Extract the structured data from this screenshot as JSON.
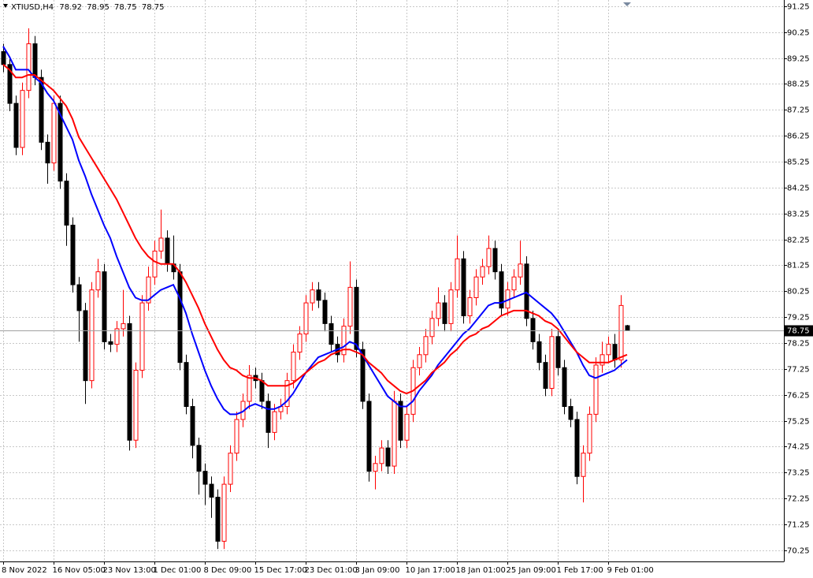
{
  "chart_data": {
    "type": "candlestick",
    "title": "XTIUSD,H4",
    "categories": [
      "8 Nov 2022",
      null,
      null,
      null,
      null,
      null,
      null,
      null,
      "16 Nov 05:00",
      null,
      null,
      null,
      null,
      null,
      null,
      null,
      "23 Nov 13:00",
      null,
      null,
      null,
      null,
      null,
      null,
      null,
      "1 Dec 01:00",
      null,
      null,
      null,
      null,
      null,
      null,
      null,
      "8 Dec 09:00",
      null,
      null,
      null,
      null,
      null,
      null,
      null,
      "15 Dec 17:00",
      null,
      null,
      null,
      null,
      null,
      null,
      null,
      "23 Dec 01:00",
      null,
      null,
      null,
      null,
      null,
      null,
      null,
      "3 Jan 09:00",
      null,
      null,
      null,
      null,
      null,
      null,
      null,
      "10 Jan 17:00",
      null,
      null,
      null,
      null,
      null,
      null,
      null,
      "18 Jan 01:00",
      null,
      null,
      null,
      null,
      null,
      null,
      null,
      "25 Jan 09:00",
      null,
      null,
      null,
      null,
      null,
      null,
      null,
      "1 Feb 17:00",
      null,
      null,
      null,
      null,
      null,
      null,
      null,
      "9 Feb 01:00",
      null,
      null,
      null
    ],
    "open": [
      89.5,
      89.0,
      87.5,
      85.8,
      88.0,
      89.8,
      88.5,
      86.0,
      85.2,
      87.5,
      84.5,
      82.8,
      80.5,
      79.5,
      76.8,
      80.3,
      81.0,
      78.3,
      78.2,
      78.8,
      79.0,
      74.5,
      77.2,
      79.8,
      80.8,
      81.8,
      82.3,
      81.3,
      81.0,
      77.5,
      75.8,
      74.3,
      73.3,
      72.8,
      72.3,
      70.6,
      72.8,
      74.0,
      75.3,
      76.0,
      77.0,
      76.8,
      76.0,
      74.8,
      75.6,
      75.8,
      76.8,
      77.9,
      78.6,
      79.8,
      80.3,
      79.9,
      79.0,
      78.2,
      77.8,
      78.9,
      80.4,
      78.0,
      76.0,
      73.3,
      73.6,
      74.2,
      73.5,
      76.0,
      74.5,
      75.5,
      77.3,
      77.8,
      78.5,
      79.2,
      79.8,
      79.0,
      80.3,
      81.5,
      79.3,
      80.0,
      80.8,
      81.2,
      81.9,
      81.0,
      79.6,
      80.3,
      80.8,
      81.3,
      79.2,
      78.3,
      77.5,
      76.5,
      78.5,
      77.3,
      75.8,
      75.3,
      73.1,
      74.0,
      75.5,
      77.4,
      77.8,
      78.2,
      77.6,
      78.92
    ],
    "high": [
      89.8,
      89.3,
      87.8,
      88.3,
      90.4,
      90.1,
      88.8,
      86.3,
      87.8,
      87.8,
      84.8,
      83.1,
      80.8,
      79.8,
      80.6,
      81.5,
      81.3,
      78.6,
      79.1,
      80.3,
      79.3,
      77.5,
      80.1,
      81.2,
      82.2,
      83.4,
      82.6,
      82.4,
      81.3,
      77.8,
      76.1,
      74.6,
      73.6,
      73.1,
      72.6,
      73.1,
      74.3,
      75.6,
      76.3,
      77.4,
      77.3,
      77.1,
      76.3,
      75.9,
      76.1,
      77.1,
      78.2,
      78.9,
      80.1,
      80.6,
      80.6,
      80.2,
      79.3,
      78.5,
      79.2,
      81.4,
      80.7,
      78.3,
      76.3,
      73.9,
      74.5,
      74.5,
      76.4,
      76.3,
      75.8,
      77.6,
      78.1,
      78.8,
      79.5,
      80.4,
      80.1,
      80.6,
      82.4,
      81.8,
      80.3,
      81.1,
      81.5,
      82.4,
      82.2,
      81.3,
      80.6,
      81.1,
      82.2,
      81.6,
      79.5,
      78.6,
      77.8,
      78.8,
      78.8,
      77.6,
      76.1,
      75.6,
      74.3,
      75.8,
      77.7,
      78.3,
      78.5,
      78.6,
      80.1,
      78.95
    ],
    "low": [
      88.7,
      87.2,
      85.5,
      85.5,
      87.7,
      88.2,
      85.7,
      84.4,
      84.9,
      84.2,
      82.0,
      80.2,
      78.3,
      75.9,
      76.5,
      80.0,
      78.0,
      77.9,
      77.9,
      78.5,
      74.1,
      74.2,
      76.9,
      79.5,
      80.5,
      81.5,
      81.0,
      80.7,
      77.2,
      75.5,
      73.8,
      72.4,
      72.0,
      71.5,
      70.3,
      70.3,
      72.5,
      73.7,
      75.0,
      75.7,
      76.5,
      75.7,
      74.2,
      74.5,
      75.3,
      75.5,
      76.5,
      77.6,
      78.3,
      79.5,
      79.6,
      78.7,
      77.9,
      77.5,
      77.5,
      78.6,
      77.7,
      75.7,
      72.9,
      72.6,
      73.3,
      73.2,
      73.2,
      74.2,
      74.2,
      75.2,
      77.0,
      77.5,
      78.2,
      78.9,
      78.7,
      78.7,
      80.0,
      79.0,
      79.0,
      79.7,
      80.5,
      80.9,
      80.7,
      79.3,
      79.3,
      80.0,
      80.5,
      78.9,
      78.0,
      77.2,
      76.2,
      76.2,
      77.0,
      75.5,
      75.0,
      72.8,
      72.1,
      73.7,
      75.2,
      77.1,
      77.5,
      77.3,
      77.3,
      78.75
    ],
    "close": [
      89.0,
      87.5,
      85.8,
      88.0,
      89.8,
      88.5,
      86.0,
      85.2,
      87.5,
      84.5,
      82.8,
      80.5,
      79.5,
      76.8,
      80.3,
      81.0,
      78.3,
      78.2,
      78.8,
      79.0,
      74.5,
      77.2,
      79.8,
      80.8,
      81.8,
      82.3,
      81.3,
      81.0,
      77.5,
      75.8,
      74.3,
      73.3,
      72.8,
      72.3,
      70.6,
      72.8,
      74.0,
      75.3,
      76.0,
      77.0,
      76.8,
      76.0,
      74.8,
      75.6,
      75.8,
      76.8,
      77.9,
      78.6,
      79.8,
      80.3,
      79.9,
      79.0,
      78.2,
      77.8,
      78.9,
      80.4,
      78.0,
      76.0,
      73.3,
      73.6,
      74.2,
      73.5,
      76.0,
      74.5,
      75.5,
      77.3,
      77.8,
      78.5,
      79.2,
      79.8,
      79.0,
      80.3,
      81.5,
      79.3,
      80.0,
      80.8,
      81.2,
      81.9,
      81.0,
      79.6,
      80.3,
      80.8,
      81.3,
      79.2,
      78.3,
      77.5,
      76.5,
      78.5,
      77.3,
      75.8,
      75.3,
      73.1,
      74.0,
      75.5,
      77.4,
      77.8,
      78.2,
      77.6,
      79.7,
      78.75
    ],
    "up_color": "#ff0000",
    "down_color": "#000000",
    "series": [
      {
        "color": "#0000ff",
        "values": [
          89.7,
          89.3,
          88.8,
          88.8,
          88.8,
          88.5,
          88.3,
          87.9,
          87.6,
          87.1,
          86.6,
          86.1,
          85.3,
          84.7,
          84.0,
          83.4,
          82.8,
          82.3,
          81.6,
          81.0,
          80.4,
          80.0,
          79.9,
          79.9,
          80.1,
          80.3,
          80.4,
          80.5,
          80.0,
          79.4,
          78.6,
          77.9,
          77.2,
          76.6,
          76.1,
          75.7,
          75.5,
          75.5,
          75.6,
          75.8,
          75.9,
          75.8,
          75.7,
          75.7,
          75.8,
          76.0,
          76.3,
          76.7,
          77.1,
          77.4,
          77.7,
          77.8,
          77.9,
          78.0,
          78.1,
          78.3,
          78.2,
          77.8,
          77.4,
          77.0,
          76.6,
          76.2,
          76.0,
          75.8,
          75.8,
          76.0,
          76.4,
          76.7,
          77.0,
          77.4,
          77.7,
          78.0,
          78.3,
          78.6,
          78.8,
          79.1,
          79.4,
          79.7,
          79.8,
          79.8,
          79.9,
          80.0,
          80.1,
          80.2,
          80.0,
          79.8,
          79.6,
          79.4,
          79.1,
          78.7,
          78.3,
          77.9,
          77.4,
          77.0,
          76.9,
          77.0,
          77.1,
          77.2,
          77.4,
          77.6
        ]
      },
      {
        "color": "#ff0000",
        "values": [
          89.0,
          88.8,
          88.5,
          88.5,
          88.6,
          88.6,
          88.4,
          88.2,
          88.0,
          87.7,
          87.4,
          86.9,
          86.2,
          85.8,
          85.4,
          85.0,
          84.6,
          84.2,
          83.8,
          83.3,
          82.8,
          82.3,
          81.9,
          81.6,
          81.4,
          81.3,
          81.3,
          81.3,
          81.0,
          80.6,
          80.1,
          79.6,
          79.0,
          78.5,
          78.0,
          77.6,
          77.3,
          77.2,
          77.0,
          76.9,
          76.9,
          76.8,
          76.6,
          76.6,
          76.6,
          76.6,
          76.7,
          76.9,
          77.1,
          77.3,
          77.5,
          77.6,
          77.8,
          77.9,
          78.0,
          78.0,
          77.9,
          77.8,
          77.5,
          77.3,
          77.1,
          76.8,
          76.6,
          76.4,
          76.3,
          76.4,
          76.6,
          76.8,
          77.1,
          77.3,
          77.5,
          77.8,
          78.0,
          78.3,
          78.5,
          78.6,
          78.8,
          78.9,
          79.1,
          79.3,
          79.4,
          79.5,
          79.5,
          79.5,
          79.4,
          79.3,
          79.1,
          79.0,
          78.8,
          78.5,
          78.2,
          77.9,
          77.7,
          77.5,
          77.5,
          77.5,
          77.5,
          77.6,
          77.7,
          77.8
        ]
      }
    ],
    "ylim": [
      69.82,
      91.49
    ],
    "yticks": [
      70.25,
      71.25,
      72.25,
      73.25,
      74.25,
      75.25,
      76.25,
      77.25,
      78.25,
      79.25,
      80.25,
      81.25,
      82.25,
      83.25,
      84.25,
      85.25,
      86.25,
      87.25,
      88.25,
      89.25,
      90.25,
      91.25
    ],
    "grid": true
  }
}
